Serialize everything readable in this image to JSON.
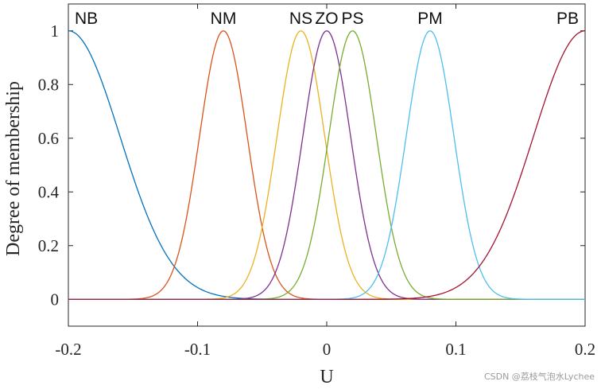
{
  "chart_data": {
    "type": "line",
    "title": "",
    "xlabel": "U",
    "ylabel": "Degree of membership",
    "xlim": [
      -0.2,
      0.2
    ],
    "ylim": [
      -0.1,
      1.1
    ],
    "xticks": [
      -0.2,
      -0.1,
      0,
      0.1,
      0.2
    ],
    "xtick_labels": [
      "-0.2",
      "-0.1",
      "0",
      "0.1",
      "0.2"
    ],
    "yticks": [
      0,
      0.2,
      0.4,
      0.6,
      0.8,
      1
    ],
    "ytick_labels": [
      "0",
      "0.2",
      "0.4",
      "0.6",
      "0.8",
      "1"
    ],
    "grid": false,
    "series": [
      {
        "name": "NB",
        "shape": "gaussian",
        "center": -0.2,
        "sigma": 0.04,
        "color": "#0072BD"
      },
      {
        "name": "NM",
        "shape": "gaussian",
        "center": -0.08,
        "sigma": 0.0185,
        "color": "#D95319"
      },
      {
        "name": "NS",
        "shape": "gaussian",
        "center": -0.02,
        "sigma": 0.0185,
        "color": "#EDB120"
      },
      {
        "name": "ZO",
        "shape": "gaussian",
        "center": 0.0,
        "sigma": 0.0185,
        "color": "#7E2F8E"
      },
      {
        "name": "PS",
        "shape": "gaussian",
        "center": 0.02,
        "sigma": 0.0185,
        "color": "#77AC30"
      },
      {
        "name": "PM",
        "shape": "gaussian",
        "center": 0.08,
        "sigma": 0.0185,
        "color": "#4DBEEE"
      },
      {
        "name": "PB",
        "shape": "gaussian",
        "center": 0.2,
        "sigma": 0.04,
        "color": "#A2142F"
      }
    ]
  },
  "watermark": "CSDN @荔枝气泡水Lychee"
}
